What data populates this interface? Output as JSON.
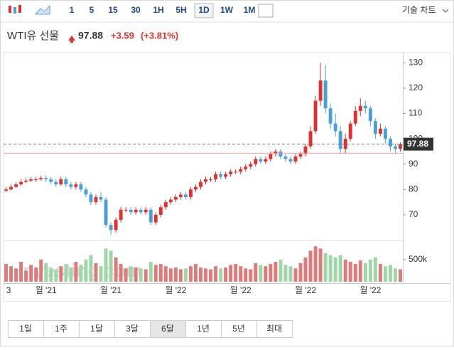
{
  "toolbar": {
    "intervals": [
      "1",
      "5",
      "15",
      "30",
      "1H",
      "5H",
      "1D",
      "1W",
      "1M"
    ],
    "selected": "1D",
    "technical": "기술 차트"
  },
  "header": {
    "name": "WTI유 선물",
    "change": "+3.59",
    "change_pct": "(+3.81%)"
  },
  "chart_data": {
    "type": "candlestick",
    "watermark": "Investing.com",
    "up_color": "#e0312f",
    "down_color": "#4a9fd8",
    "volume_up_color": "#e07a78",
    "volume_down_color": "#9fd6a8",
    "last": 97.88,
    "previous_close": 94.29,
    "ylim": [
      61,
      134
    ],
    "yticks": [
      70,
      80,
      90,
      100,
      110,
      120,
      130
    ],
    "y2lim": [
      0,
      900000
    ],
    "y2ticks": [
      {
        "value": 500000,
        "label": "500k"
      }
    ],
    "categories": [
      "3",
      null,
      null,
      null,
      null,
      null,
      null,
      null,
      "월 '21",
      null,
      null,
      null,
      null,
      null,
      null,
      null,
      null,
      null,
      null,
      null,
      null,
      "월 '21",
      null,
      null,
      null,
      null,
      null,
      null,
      null,
      null,
      null,
      null,
      null,
      null,
      "월 '22",
      null,
      null,
      null,
      null,
      null,
      null,
      null,
      null,
      null,
      null,
      null,
      null,
      "월 '22",
      null,
      null,
      null,
      null,
      null,
      null,
      null,
      null,
      null,
      null,
      null,
      null,
      "월 '22",
      null,
      null,
      null,
      null,
      null,
      null,
      null,
      null,
      null,
      null,
      null,
      null,
      "월 '22",
      null,
      null,
      null,
      null,
      null,
      null
    ],
    "open": [
      79.5,
      80,
      81,
      82,
      83,
      83.5,
      84,
      84,
      84.5,
      84,
      83,
      82,
      84,
      82,
      81,
      82,
      80,
      78,
      75,
      77,
      76,
      66,
      64,
      68,
      72,
      72,
      71,
      72,
      71,
      72,
      67,
      70,
      73,
      75,
      76,
      77,
      78,
      77,
      80,
      81,
      83,
      84,
      84,
      86,
      85,
      86,
      87,
      87,
      88,
      89,
      90,
      92,
      91,
      92,
      94,
      95,
      93,
      92,
      91,
      93,
      94,
      97,
      103,
      115,
      123,
      112,
      106,
      103,
      96,
      100,
      106,
      111,
      113,
      112,
      107,
      102,
      104,
      100,
      97,
      96
    ],
    "high": [
      81,
      82,
      83,
      84,
      84.5,
      85,
      85,
      85.5,
      85.5,
      85,
      84,
      85,
      85,
      83,
      83,
      83,
      81,
      79,
      78,
      79,
      77,
      67,
      69,
      73,
      73,
      73,
      73,
      73,
      73,
      73,
      71,
      74,
      76,
      77,
      78,
      79,
      79,
      81,
      82,
      84,
      85,
      85,
      87,
      87,
      87,
      88,
      88,
      89,
      90,
      91,
      93,
      93,
      93,
      95,
      96,
      96,
      94,
      93,
      94,
      95,
      98,
      105,
      117,
      130,
      129,
      114,
      110,
      105,
      102,
      107,
      113,
      116,
      115,
      113,
      108,
      106,
      105,
      101,
      98,
      98.5
    ],
    "low": [
      79,
      79.5,
      80.5,
      81.5,
      82.5,
      83,
      83,
      83.5,
      83,
      82,
      81,
      81.5,
      81,
      80,
      80,
      79,
      77,
      74,
      74,
      75,
      65,
      62,
      63,
      67,
      71,
      70,
      70,
      70,
      70,
      66,
      66,
      69,
      72,
      74,
      75,
      76,
      76,
      76,
      79,
      80,
      82,
      83,
      83,
      84,
      84,
      85,
      86,
      86,
      87,
      88,
      89,
      90,
      90,
      91,
      93,
      92,
      91,
      90,
      90,
      92,
      93,
      96,
      102,
      113,
      110,
      104,
      101,
      94,
      94,
      99,
      105,
      109,
      110,
      105,
      100,
      101,
      98,
      95,
      94,
      95
    ],
    "close": [
      80,
      81,
      82,
      83,
      83.5,
      84,
      84,
      84.5,
      84,
      83,
      82,
      84,
      82,
      81,
      82,
      80,
      78,
      75,
      77,
      76,
      66,
      64,
      68,
      72,
      72,
      71,
      72,
      71,
      72,
      67,
      70,
      73,
      75,
      76,
      77,
      78,
      77,
      80,
      81,
      83,
      84,
      84,
      86,
      85,
      86,
      87,
      87,
      88,
      89,
      90,
      92,
      91,
      92,
      94,
      95,
      93,
      92,
      91,
      93,
      94,
      97,
      103,
      115,
      123,
      112,
      106,
      103,
      96,
      100,
      106,
      111,
      113,
      112,
      107,
      102,
      104,
      100,
      97,
      96,
      97.88
    ],
    "volume": [
      400000,
      350000,
      300000,
      450000,
      250000,
      380000,
      320000,
      500000,
      420000,
      300000,
      280000,
      350000,
      400000,
      320000,
      450000,
      380000,
      500000,
      600000,
      420000,
      350000,
      750000,
      700000,
      550000,
      400000,
      300000,
      350000,
      320000,
      300000,
      280000,
      450000,
      380000,
      400000,
      350000,
      300000,
      320000,
      280000,
      300000,
      350000,
      400000,
      320000,
      300000,
      280000,
      350000,
      300000,
      320000,
      380000,
      400000,
      350000,
      300000,
      280000,
      420000,
      380000,
      350000,
      400000,
      450000,
      500000,
      380000,
      350000,
      300000,
      420000,
      550000,
      700000,
      800000,
      750000,
      650000,
      600000,
      550000,
      600000,
      500000,
      450000,
      400000,
      480000,
      420000,
      500000,
      550000,
      400000,
      350000,
      380000,
      300000,
      280000
    ]
  },
  "ranges": [
    "1일",
    "1주",
    "1달",
    "3달",
    "6달",
    "1년",
    "5년",
    "최대"
  ],
  "selected_range": "6달"
}
